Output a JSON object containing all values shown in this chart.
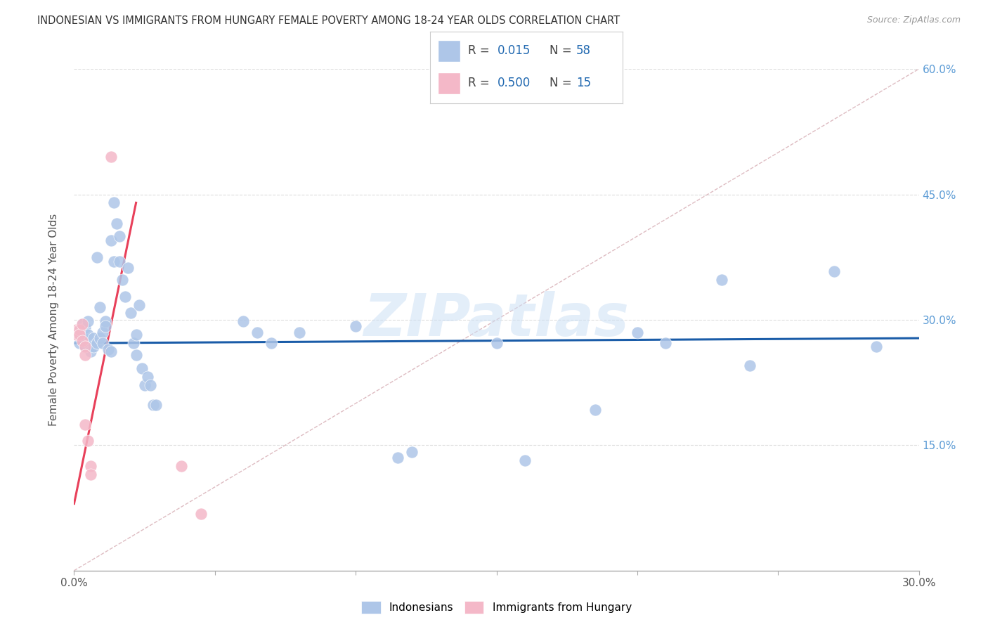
{
  "title": "INDONESIAN VS IMMIGRANTS FROM HUNGARY FEMALE POVERTY AMONG 18-24 YEAR OLDS CORRELATION CHART",
  "source": "Source: ZipAtlas.com",
  "ylabel": "Female Poverty Among 18-24 Year Olds",
  "xlim": [
    0.0,
    0.3
  ],
  "ylim": [
    0.0,
    0.6
  ],
  "xticks": [
    0.0,
    0.05,
    0.1,
    0.15,
    0.2,
    0.25,
    0.3
  ],
  "xticklabels": [
    "0.0%",
    "",
    "",
    "",
    "",
    "",
    "30.0%"
  ],
  "yticks_right": [
    0.0,
    0.15,
    0.3,
    0.45,
    0.6
  ],
  "yticklabels_right": [
    "",
    "15.0%",
    "30.0%",
    "45.0%",
    "60.0%"
  ],
  "blue_R": 0.015,
  "blue_N": 58,
  "pink_R": 0.5,
  "pink_N": 15,
  "blue_color": "#aec6e8",
  "pink_color": "#f4b8c8",
  "blue_line_color": "#1a5ca8",
  "pink_line_color": "#e8405a",
  "ref_line_color": "#d0a0a8",
  "legend_label_blue": "Indonesians",
  "legend_label_pink": "Immigrants from Hungary",
  "watermark": "ZIPatlas",
  "blue_trend_x": [
    0.0,
    0.3
  ],
  "blue_trend_y": [
    0.272,
    0.278
  ],
  "pink_trend_x": [
    0.0,
    0.022
  ],
  "pink_trend_y": [
    0.08,
    0.44
  ],
  "blue_points": [
    [
      0.001,
      0.285
    ],
    [
      0.002,
      0.272
    ],
    [
      0.003,
      0.295
    ],
    [
      0.003,
      0.282
    ],
    [
      0.004,
      0.291
    ],
    [
      0.004,
      0.268
    ],
    [
      0.005,
      0.298
    ],
    [
      0.005,
      0.282
    ],
    [
      0.006,
      0.268
    ],
    [
      0.006,
      0.262
    ],
    [
      0.007,
      0.278
    ],
    [
      0.007,
      0.268
    ],
    [
      0.008,
      0.375
    ],
    [
      0.008,
      0.272
    ],
    [
      0.009,
      0.315
    ],
    [
      0.009,
      0.278
    ],
    [
      0.01,
      0.285
    ],
    [
      0.01,
      0.272
    ],
    [
      0.011,
      0.298
    ],
    [
      0.011,
      0.292
    ],
    [
      0.012,
      0.265
    ],
    [
      0.013,
      0.395
    ],
    [
      0.013,
      0.262
    ],
    [
      0.014,
      0.44
    ],
    [
      0.014,
      0.37
    ],
    [
      0.015,
      0.415
    ],
    [
      0.016,
      0.4
    ],
    [
      0.016,
      0.37
    ],
    [
      0.017,
      0.348
    ],
    [
      0.018,
      0.328
    ],
    [
      0.019,
      0.362
    ],
    [
      0.02,
      0.308
    ],
    [
      0.021,
      0.272
    ],
    [
      0.022,
      0.282
    ],
    [
      0.022,
      0.258
    ],
    [
      0.023,
      0.318
    ],
    [
      0.024,
      0.242
    ],
    [
      0.025,
      0.222
    ],
    [
      0.026,
      0.232
    ],
    [
      0.027,
      0.222
    ],
    [
      0.028,
      0.198
    ],
    [
      0.029,
      0.198
    ],
    [
      0.06,
      0.298
    ],
    [
      0.065,
      0.285
    ],
    [
      0.07,
      0.272
    ],
    [
      0.08,
      0.285
    ],
    [
      0.1,
      0.292
    ],
    [
      0.115,
      0.135
    ],
    [
      0.12,
      0.142
    ],
    [
      0.15,
      0.272
    ],
    [
      0.16,
      0.132
    ],
    [
      0.185,
      0.192
    ],
    [
      0.2,
      0.285
    ],
    [
      0.21,
      0.272
    ],
    [
      0.23,
      0.348
    ],
    [
      0.24,
      0.245
    ],
    [
      0.27,
      0.358
    ],
    [
      0.285,
      0.268
    ]
  ],
  "pink_points": [
    [
      0.001,
      0.288
    ],
    [
      0.001,
      0.282
    ],
    [
      0.002,
      0.288
    ],
    [
      0.002,
      0.282
    ],
    [
      0.003,
      0.295
    ],
    [
      0.003,
      0.275
    ],
    [
      0.004,
      0.268
    ],
    [
      0.004,
      0.258
    ],
    [
      0.004,
      0.175
    ],
    [
      0.005,
      0.155
    ],
    [
      0.006,
      0.125
    ],
    [
      0.006,
      0.115
    ],
    [
      0.013,
      0.495
    ],
    [
      0.038,
      0.125
    ],
    [
      0.045,
      0.068
    ]
  ]
}
